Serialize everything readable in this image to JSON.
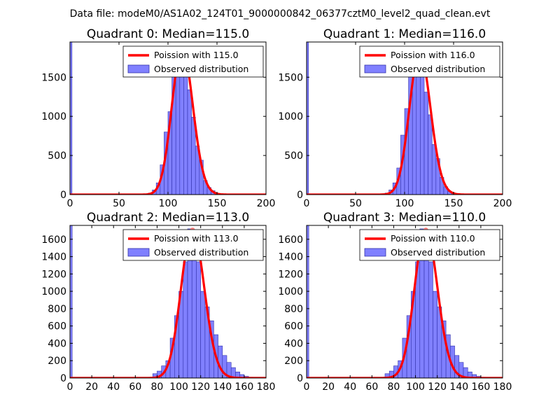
{
  "figure": {
    "suptitle": "Data file: modeM0/AS1A02_124T01_9000000842_06377cztM0_level2_quad_clean.evt"
  },
  "colors": {
    "bar_fill": "#8080ff",
    "bar_edge": "#3333aa",
    "poisson_line": "#ff0000",
    "poisson_overlap": "#ff9999"
  },
  "chart_data": [
    {
      "type": "bar",
      "title": "Quadrant 0: Median=115.0",
      "xlim": [
        0,
        200
      ],
      "ylim": [
        0,
        1950
      ],
      "xticks": [
        0,
        50,
        100,
        150,
        200
      ],
      "yticks": [
        0,
        500,
        1000,
        1500
      ],
      "bin_width": 4,
      "zero_bin_value": 1950,
      "legend": [
        "Poission with 115.0",
        "Observed distribution"
      ],
      "legend_position": "upper-right",
      "series": [
        {
          "name": "Observed distribution",
          "bins": [
            [
              72,
              8
            ],
            [
              76,
              10
            ],
            [
              80,
              20
            ],
            [
              84,
              60
            ],
            [
              88,
              150
            ],
            [
              92,
              380
            ],
            [
              96,
              800
            ],
            [
              100,
              1060
            ],
            [
              104,
              1620
            ],
            [
              108,
              1870
            ],
            [
              112,
              1810
            ],
            [
              116,
              1510
            ],
            [
              120,
              1340
            ],
            [
              124,
              990
            ],
            [
              128,
              620
            ],
            [
              132,
              440
            ],
            [
              136,
              180
            ],
            [
              140,
              90
            ],
            [
              144,
              50
            ],
            [
              148,
              12
            ],
            [
              152,
              5
            ],
            [
              180,
              2
            ]
          ]
        },
        {
          "name": "Poission with 115.0",
          "mean": 115.0,
          "scale": 4
        }
      ]
    },
    {
      "type": "bar",
      "title": "Quadrant 1: Median=116.0",
      "xlim": [
        0,
        200
      ],
      "ylim": [
        0,
        1950
      ],
      "xticks": [
        0,
        50,
        100,
        150,
        200
      ],
      "yticks": [
        0,
        500,
        1000,
        1500
      ],
      "bin_width": 4,
      "zero_bin_value": 1950,
      "legend": [
        "Poission with 116.0",
        "Observed distribution"
      ],
      "legend_position": "upper-right",
      "series": [
        {
          "name": "Observed distribution",
          "bins": [
            [
              72,
              8
            ],
            [
              76,
              10
            ],
            [
              80,
              20
            ],
            [
              84,
              60
            ],
            [
              88,
              150
            ],
            [
              92,
              340
            ],
            [
              96,
              760
            ],
            [
              100,
              1100
            ],
            [
              104,
              1560
            ],
            [
              108,
              1820
            ],
            [
              112,
              1790
            ],
            [
              116,
              1530
            ],
            [
              120,
              1310
            ],
            [
              124,
              1020
            ],
            [
              128,
              640
            ],
            [
              132,
              460
            ],
            [
              136,
              220
            ],
            [
              140,
              100
            ],
            [
              144,
              40
            ],
            [
              148,
              15
            ],
            [
              152,
              5
            ],
            [
              184,
              2
            ]
          ]
        },
        {
          "name": "Poission with 116.0",
          "mean": 116.0,
          "scale": 4
        }
      ]
    },
    {
      "type": "bar",
      "title": "Quadrant 2: Median=113.0",
      "xlim": [
        0,
        180
      ],
      "ylim": [
        0,
        1760
      ],
      "xticks": [
        0,
        20,
        40,
        60,
        80,
        100,
        120,
        140,
        160,
        180
      ],
      "yticks": [
        0,
        200,
        400,
        600,
        800,
        1000,
        1200,
        1400,
        1600
      ],
      "bin_width": 4,
      "zero_bin_value": 1760,
      "legend": [
        "Poission with 113.0",
        "Observed distribution"
      ],
      "legend_position": "upper-right",
      "series": [
        {
          "name": "Observed distribution",
          "bins": [
            [
              72,
              10
            ],
            [
              76,
              50
            ],
            [
              80,
              80
            ],
            [
              84,
              140
            ],
            [
              88,
              200
            ],
            [
              92,
              460
            ],
            [
              96,
              720
            ],
            [
              100,
              1000
            ],
            [
              104,
              1340
            ],
            [
              108,
              1720
            ],
            [
              112,
              1600
            ],
            [
              116,
              1340
            ],
            [
              120,
              1000
            ],
            [
              124,
              820
            ],
            [
              128,
              660
            ],
            [
              132,
              500
            ],
            [
              136,
              370
            ],
            [
              140,
              260
            ],
            [
              144,
              180
            ],
            [
              148,
              120
            ],
            [
              152,
              70
            ],
            [
              156,
              40
            ],
            [
              160,
              20
            ],
            [
              164,
              10
            ],
            [
              168,
              5
            ]
          ]
        },
        {
          "name": "Poission with 113.0",
          "mean": 113.0,
          "scale": 4
        }
      ]
    },
    {
      "type": "bar",
      "title": "Quadrant 3: Median=110.0",
      "xlim": [
        0,
        180
      ],
      "ylim": [
        0,
        1760
      ],
      "xticks": [
        0,
        20,
        40,
        60,
        80,
        100,
        120,
        140,
        160,
        180
      ],
      "yticks": [
        0,
        200,
        400,
        600,
        800,
        1000,
        1200,
        1400,
        1600
      ],
      "bin_width": 4,
      "zero_bin_value": 1760,
      "legend": [
        "Poission with 110.0",
        "Observed distribution"
      ],
      "legend_position": "upper-right",
      "series": [
        {
          "name": "Observed distribution",
          "bins": [
            [
              68,
              10
            ],
            [
              72,
              50
            ],
            [
              76,
              80
            ],
            [
              80,
              140
            ],
            [
              84,
              200
            ],
            [
              88,
              460
            ],
            [
              92,
              720
            ],
            [
              96,
              1000
            ],
            [
              100,
              1340
            ],
            [
              104,
              1720
            ],
            [
              108,
              1600
            ],
            [
              112,
              1340
            ],
            [
              116,
              1000
            ],
            [
              120,
              820
            ],
            [
              124,
              660
            ],
            [
              128,
              500
            ],
            [
              132,
              370
            ],
            [
              136,
              260
            ],
            [
              140,
              180
            ],
            [
              144,
              120
            ],
            [
              148,
              70
            ],
            [
              152,
              40
            ],
            [
              156,
              20
            ],
            [
              160,
              10
            ],
            [
              164,
              5
            ]
          ]
        },
        {
          "name": "Poission with 110.0",
          "mean": 110.0,
          "scale": 4
        }
      ]
    }
  ]
}
